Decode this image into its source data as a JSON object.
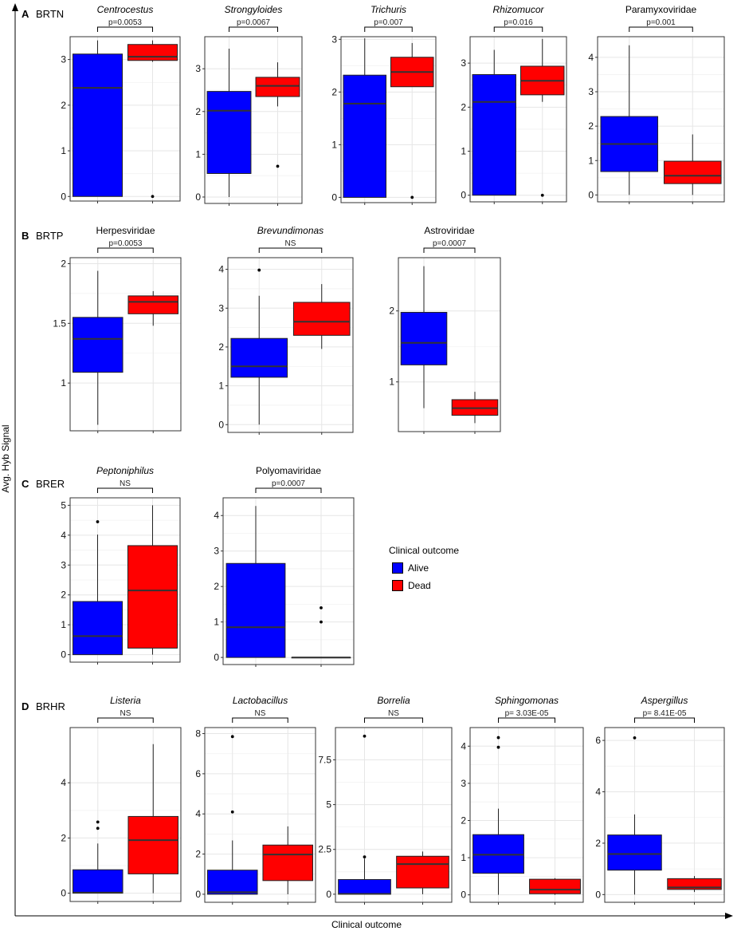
{
  "figure": {
    "y_axis_label": "Avg. Hyb Signal",
    "x_axis_label": "Clinical outcome",
    "colors": {
      "alive": "#0000ff",
      "dead": "#ff0000",
      "grid": "#e6e6e6",
      "frame": "#333333"
    }
  },
  "legend": {
    "title": "Clinical outcome",
    "items": [
      {
        "label": "Alive",
        "color": "#0000ff"
      },
      {
        "label": "Dead",
        "color": "#ff0000"
      }
    ]
  },
  "chart_data": [
    {
      "type": "box",
      "panel": "A",
      "panel_name": "BRTN",
      "title": "Centrocestus",
      "italic": true,
      "pvalue": "p=0.0053",
      "ylim": [
        -0.1,
        3.5
      ],
      "yticks": [
        0,
        1,
        2,
        3
      ],
      "ytick_labels": [
        "0",
        "1",
        "2",
        "3"
      ],
      "series": [
        {
          "name": "Alive",
          "min": 0,
          "q1": 0,
          "median": 2.38,
          "q3": 3.12,
          "max": 3.42,
          "outliers": []
        },
        {
          "name": "Dead",
          "min": 2.95,
          "q1": 2.98,
          "median": 3.06,
          "q3": 3.33,
          "max": 3.42,
          "outliers": [
            0
          ]
        }
      ]
    },
    {
      "type": "box",
      "panel": "A",
      "title": "Strongyloides",
      "italic": true,
      "pvalue": "p=0.0067",
      "ylim": [
        -0.15,
        3.75
      ],
      "yticks": [
        0,
        1,
        2,
        3
      ],
      "ytick_labels": [
        "0",
        "1",
        "2",
        "3"
      ],
      "series": [
        {
          "name": "Alive",
          "min": 0,
          "q1": 0.55,
          "median": 2.02,
          "q3": 2.47,
          "max": 3.47,
          "outliers": []
        },
        {
          "name": "Dead",
          "min": 2.12,
          "q1": 2.35,
          "median": 2.6,
          "q3": 2.8,
          "max": 3.15,
          "outliers": [
            0.72
          ]
        }
      ]
    },
    {
      "type": "box",
      "panel": "A",
      "title": "Trichuris",
      "italic": true,
      "pvalue": "p=0.007",
      "ylim": [
        -0.1,
        3.05
      ],
      "yticks": [
        0,
        1,
        2,
        3
      ],
      "ytick_labels": [
        "0",
        "1",
        "2",
        "3"
      ],
      "series": [
        {
          "name": "Alive",
          "min": 0,
          "q1": 0,
          "median": 1.78,
          "q3": 2.32,
          "max": 3.02,
          "outliers": []
        },
        {
          "name": "Dead",
          "min": 2.1,
          "q1": 2.1,
          "median": 2.38,
          "q3": 2.66,
          "max": 2.93,
          "outliers": [
            0
          ]
        }
      ]
    },
    {
      "type": "box",
      "panel": "A",
      "title": "Rhizomucor",
      "italic": true,
      "pvalue": "p=0.016",
      "ylim": [
        -0.15,
        3.6
      ],
      "yticks": [
        0,
        1,
        2,
        3
      ],
      "ytick_labels": [
        "0",
        "1",
        "2",
        "3"
      ],
      "series": [
        {
          "name": "Alive",
          "min": 0,
          "q1": 0,
          "median": 2.12,
          "q3": 2.74,
          "max": 3.3,
          "outliers": []
        },
        {
          "name": "Dead",
          "min": 2.12,
          "q1": 2.28,
          "median": 2.6,
          "q3": 2.93,
          "max": 3.55,
          "outliers": [
            0
          ]
        }
      ]
    },
    {
      "type": "box",
      "panel": "A",
      "title": "Paramyxoviridae",
      "italic": false,
      "pvalue": "p=0.001",
      "ylim": [
        -0.2,
        4.6
      ],
      "yticks": [
        0,
        1,
        2,
        3,
        4
      ],
      "ytick_labels": [
        "0",
        "1",
        "2",
        "3",
        "4"
      ],
      "series": [
        {
          "name": "Alive",
          "min": 0,
          "q1": 0.68,
          "median": 1.48,
          "q3": 2.28,
          "max": 4.35,
          "outliers": []
        },
        {
          "name": "Dead",
          "min": 0,
          "q1": 0.33,
          "median": 0.56,
          "q3": 0.98,
          "max": 1.76,
          "outliers": []
        }
      ]
    },
    {
      "type": "box",
      "panel": "B",
      "panel_name": "BRTP",
      "title": "Herpesviridae",
      "italic": false,
      "pvalue": "p=0.0053",
      "ylim": [
        0.6,
        2.05
      ],
      "yticks": [
        1,
        1.5,
        2
      ],
      "ytick_labels": [
        "1",
        "1.5",
        "2"
      ],
      "series": [
        {
          "name": "Alive",
          "min": 0.65,
          "q1": 1.09,
          "median": 1.37,
          "q3": 1.55,
          "max": 1.94,
          "outliers": []
        },
        {
          "name": "Dead",
          "min": 1.48,
          "q1": 1.58,
          "median": 1.68,
          "q3": 1.73,
          "max": 1.77,
          "outliers": []
        }
      ]
    },
    {
      "type": "box",
      "panel": "B",
      "title": "Brevundimonas",
      "italic": true,
      "pvalue": "NS",
      "ylim": [
        -0.2,
        4.3
      ],
      "yticks": [
        0,
        1,
        2,
        3,
        4
      ],
      "ytick_labels": [
        "0",
        "1",
        "2",
        "3",
        "4"
      ],
      "series": [
        {
          "name": "Alive",
          "min": 0,
          "q1": 1.22,
          "median": 1.5,
          "q3": 2.22,
          "max": 3.32,
          "outliers": [
            3.98
          ]
        },
        {
          "name": "Dead",
          "min": 1.95,
          "q1": 2.3,
          "median": 2.65,
          "q3": 3.15,
          "max": 3.62,
          "outliers": []
        }
      ]
    },
    {
      "type": "box",
      "panel": "B",
      "title": "Astroviridae",
      "italic": false,
      "pvalue": "p=0.0007",
      "ylim": [
        0.3,
        2.75
      ],
      "yticks": [
        1,
        2
      ],
      "ytick_labels": [
        "1",
        "2"
      ],
      "series": [
        {
          "name": "Alive",
          "min": 0.63,
          "q1": 1.24,
          "median": 1.55,
          "q3": 1.98,
          "max": 2.63,
          "outliers": []
        },
        {
          "name": "Dead",
          "min": 0.42,
          "q1": 0.53,
          "median": 0.63,
          "q3": 0.75,
          "max": 0.86,
          "outliers": []
        }
      ]
    },
    {
      "type": "box",
      "panel": "C",
      "panel_name": "BRER",
      "title": "Peptoniphilus",
      "italic": true,
      "pvalue": "NS",
      "ylim": [
        -0.25,
        5.25
      ],
      "yticks": [
        0,
        1,
        2,
        3,
        4,
        5
      ],
      "ytick_labels": [
        "0",
        "1",
        "2",
        "3",
        "4",
        "5"
      ],
      "series": [
        {
          "name": "Alive",
          "min": 0,
          "q1": 0,
          "median": 0.62,
          "q3": 1.78,
          "max": 4.02,
          "outliers": [
            4.45
          ]
        },
        {
          "name": "Dead",
          "min": 0,
          "q1": 0.22,
          "median": 2.15,
          "q3": 3.65,
          "max": 5.0,
          "outliers": []
        }
      ]
    },
    {
      "type": "box",
      "panel": "C",
      "title": "Polyomaviridae",
      "italic": false,
      "pvalue": "p=0.0007",
      "ylim": [
        -0.2,
        4.5
      ],
      "yticks": [
        0,
        1,
        2,
        3,
        4
      ],
      "ytick_labels": [
        "0",
        "1",
        "2",
        "3",
        "4"
      ],
      "series": [
        {
          "name": "Alive",
          "min": 0,
          "q1": 0,
          "median": 0.85,
          "q3": 2.65,
          "max": 4.27,
          "outliers": []
        },
        {
          "name": "Dead",
          "min": 0,
          "q1": 0,
          "median": 0,
          "q3": 0,
          "max": 0,
          "outliers": [
            1.0,
            1.4
          ]
        }
      ]
    },
    {
      "type": "box",
      "panel": "D",
      "panel_name": "BRHR",
      "title": "Listeria",
      "italic": true,
      "pvalue": "NS",
      "ylim": [
        -0.3,
        6.0
      ],
      "yticks": [
        0,
        2,
        4
      ],
      "ytick_labels": [
        "0",
        "2",
        "4"
      ],
      "series": [
        {
          "name": "Alive",
          "min": 0,
          "q1": 0,
          "median": 0.02,
          "q3": 0.85,
          "max": 1.8,
          "outliers": [
            2.35,
            2.58
          ]
        },
        {
          "name": "Dead",
          "min": 0,
          "q1": 0.7,
          "median": 1.92,
          "q3": 2.78,
          "max": 5.4,
          "outliers": []
        }
      ]
    },
    {
      "type": "box",
      "panel": "D",
      "title": "Lactobacillus",
      "italic": true,
      "pvalue": "NS",
      "ylim": [
        -0.4,
        8.3
      ],
      "yticks": [
        0,
        2,
        4,
        6,
        8
      ],
      "ytick_labels": [
        "0",
        "2",
        "4",
        "6",
        "8"
      ],
      "series": [
        {
          "name": "Alive",
          "min": 0,
          "q1": 0,
          "median": 0.1,
          "q3": 1.2,
          "max": 2.68,
          "outliers": [
            4.1,
            7.85
          ]
        },
        {
          "name": "Dead",
          "min": 0,
          "q1": 0.68,
          "median": 1.98,
          "q3": 2.45,
          "max": 3.38,
          "outliers": []
        }
      ]
    },
    {
      "type": "box",
      "panel": "D",
      "title": "Borrelia",
      "italic": true,
      "pvalue": "NS",
      "ylim": [
        -0.45,
        9.3
      ],
      "yticks": [
        0,
        2.5,
        5,
        7.5
      ],
      "ytick_labels": [
        "0",
        "2.5",
        "5",
        "7.5"
      ],
      "series": [
        {
          "name": "Alive",
          "min": 0,
          "q1": 0,
          "median": 0.02,
          "q3": 0.82,
          "max": 1.98,
          "outliers": [
            2.08,
            8.82
          ]
        },
        {
          "name": "Dead",
          "min": 0,
          "q1": 0.35,
          "median": 1.68,
          "q3": 2.12,
          "max": 2.38,
          "outliers": []
        }
      ]
    },
    {
      "type": "box",
      "panel": "D",
      "title": "Sphingomonas",
      "italic": true,
      "pvalue": "p= 3.03E-05",
      "ylim": [
        -0.2,
        4.5
      ],
      "yticks": [
        0,
        1,
        2,
        3,
        4
      ],
      "ytick_labels": [
        "0",
        "1",
        "2",
        "3",
        "4"
      ],
      "series": [
        {
          "name": "Alive",
          "min": 0,
          "q1": 0.58,
          "median": 1.08,
          "q3": 1.62,
          "max": 2.32,
          "outliers": [
            3.97,
            4.23
          ]
        },
        {
          "name": "Dead",
          "min": 0,
          "q1": 0.03,
          "median": 0.14,
          "q3": 0.42,
          "max": 0.45,
          "outliers": []
        }
      ]
    },
    {
      "type": "box",
      "panel": "D",
      "title": "Aspergillus",
      "italic": true,
      "pvalue": "p= 8.41E-05",
      "ylim": [
        -0.3,
        6.5
      ],
      "yticks": [
        0,
        2,
        4,
        6
      ],
      "ytick_labels": [
        "0",
        "2",
        "4",
        "6"
      ],
      "series": [
        {
          "name": "Alive",
          "min": 0,
          "q1": 0.95,
          "median": 1.58,
          "q3": 2.32,
          "max": 3.12,
          "outliers": [
            6.1
          ]
        },
        {
          "name": "Dead",
          "min": 0.1,
          "q1": 0.2,
          "median": 0.28,
          "q3": 0.62,
          "max": 0.72,
          "outliers": []
        }
      ]
    }
  ]
}
